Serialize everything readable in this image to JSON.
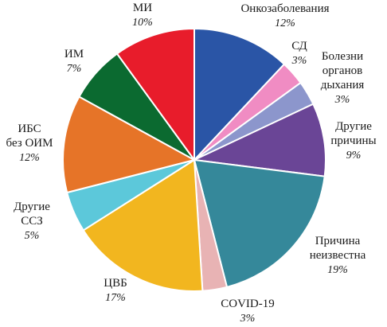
{
  "chart_data": {
    "type": "pie",
    "slices": [
      {
        "label": [
          "Онкозаболевания"
        ],
        "value": 12,
        "value_label": "12%",
        "color": "#2a55a6"
      },
      {
        "label": [
          "СД"
        ],
        "value": 3,
        "value_label": "3%",
        "color": "#f08cc3"
      },
      {
        "label": [
          "Болезни",
          "органов",
          "дыхания"
        ],
        "value": 3,
        "value_label": "3%",
        "color": "#8c96cc"
      },
      {
        "label": [
          "Другие",
          "причины"
        ],
        "value": 9,
        "value_label": "9%",
        "color": "#6a4596"
      },
      {
        "label": [
          "Причина",
          "неизвестна"
        ],
        "value": 19,
        "value_label": "19%",
        "color": "#35889a"
      },
      {
        "label": [
          "COVID-19"
        ],
        "value": 3,
        "value_label": "3%",
        "color": "#e8b3b4"
      },
      {
        "label": [
          "ЦВБ"
        ],
        "value": 17,
        "value_label": "17%",
        "color": "#f2b61f"
      },
      {
        "label": [
          "Другие",
          "ССЗ"
        ],
        "value": 5,
        "value_label": "5%",
        "color": "#5cc8da"
      },
      {
        "label": [
          "ИБС",
          "без ОИМ"
        ],
        "value": 12,
        "value_label": "12%",
        "color": "#e67428"
      },
      {
        "label": [
          "ИМ"
        ],
        "value": 7,
        "value_label": "7%",
        "color": "#0b6a30"
      },
      {
        "label": [
          "МИ"
        ],
        "value": 10,
        "value_label": "10%",
        "color": "#e81c2b"
      }
    ]
  }
}
